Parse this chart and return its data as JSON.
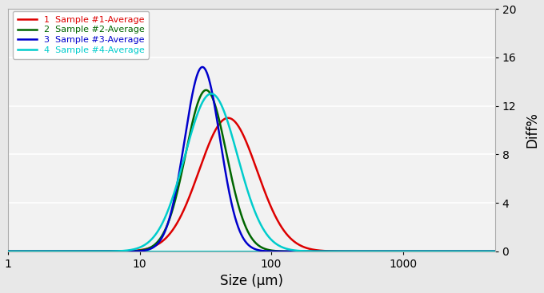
{
  "title": "",
  "xlabel": "Size (μm)",
  "ylabel": "Diff%",
  "xlim": [
    1,
    5000
  ],
  "ylim": [
    0,
    20
  ],
  "yticks": [
    0,
    4,
    8,
    12,
    16,
    20
  ],
  "background_color": "#e8e8e8",
  "plot_background": "#f2f2f2",
  "grid_color": "#ffffff",
  "series": [
    {
      "label": "1  Sample #1-Average",
      "color": "#dd0000",
      "peak": 47,
      "sigma": 0.22,
      "amplitude": 11.0
    },
    {
      "label": "2  Sample #2-Average",
      "color": "#006600",
      "peak": 32,
      "sigma": 0.155,
      "amplitude": 13.3
    },
    {
      "label": "3  Sample #3-Average",
      "color": "#0000cc",
      "peak": 30,
      "sigma": 0.135,
      "amplitude": 15.2
    },
    {
      "label": "4  Sample #4-Average",
      "color": "#00cccc",
      "peak": 35,
      "sigma": 0.2,
      "amplitude": 13.0
    }
  ]
}
